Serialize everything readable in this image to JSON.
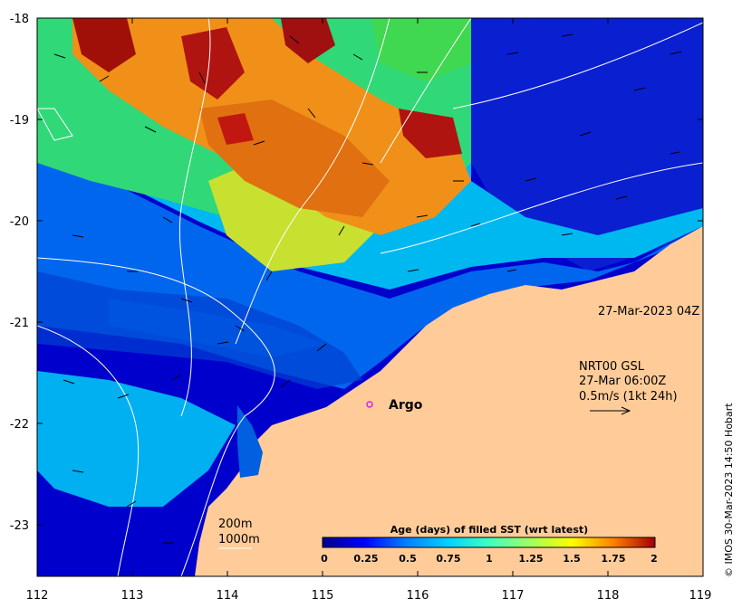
{
  "map": {
    "x_ticks": [
      "112",
      "113",
      "114",
      "115",
      "116",
      "117",
      "118",
      "119"
    ],
    "y_ticks": [
      "-18",
      "-19",
      "-20",
      "-21",
      "-22",
      "-23"
    ],
    "xlim": [
      112,
      119
    ],
    "ylim": [
      -23.5,
      -18
    ]
  },
  "timestamp_label": "27-Mar-2023 04Z",
  "current_legend": {
    "line1": "NRT00 GSL",
    "line2": "27-Mar 06:00Z",
    "line3": "0.5m/s (1kt 24h)"
  },
  "argo": {
    "label": "Argo",
    "lon": 115.45,
    "lat": -21.7,
    "color": "#e020e0"
  },
  "depth_legend": {
    "contour1": "200m",
    "contour2": "1000m"
  },
  "colorbar": {
    "title": "Age (days) of filled SST (wrt latest)",
    "ticks": [
      "0",
      "0.25",
      "0.5",
      "0.75",
      "1",
      "1.25",
      "1.5",
      "1.75",
      "2"
    ],
    "colors": [
      "#00008f",
      "#0000ff",
      "#0080ff",
      "#00d0ff",
      "#40ffc0",
      "#a0ff60",
      "#ffff00",
      "#ffa000",
      "#ff4000",
      "#a00000"
    ]
  },
  "credit": "© IMOS 30-Mar-2023 14:50 Hobart",
  "colors": {
    "land": "#ffcc99",
    "frame": "#000000"
  }
}
